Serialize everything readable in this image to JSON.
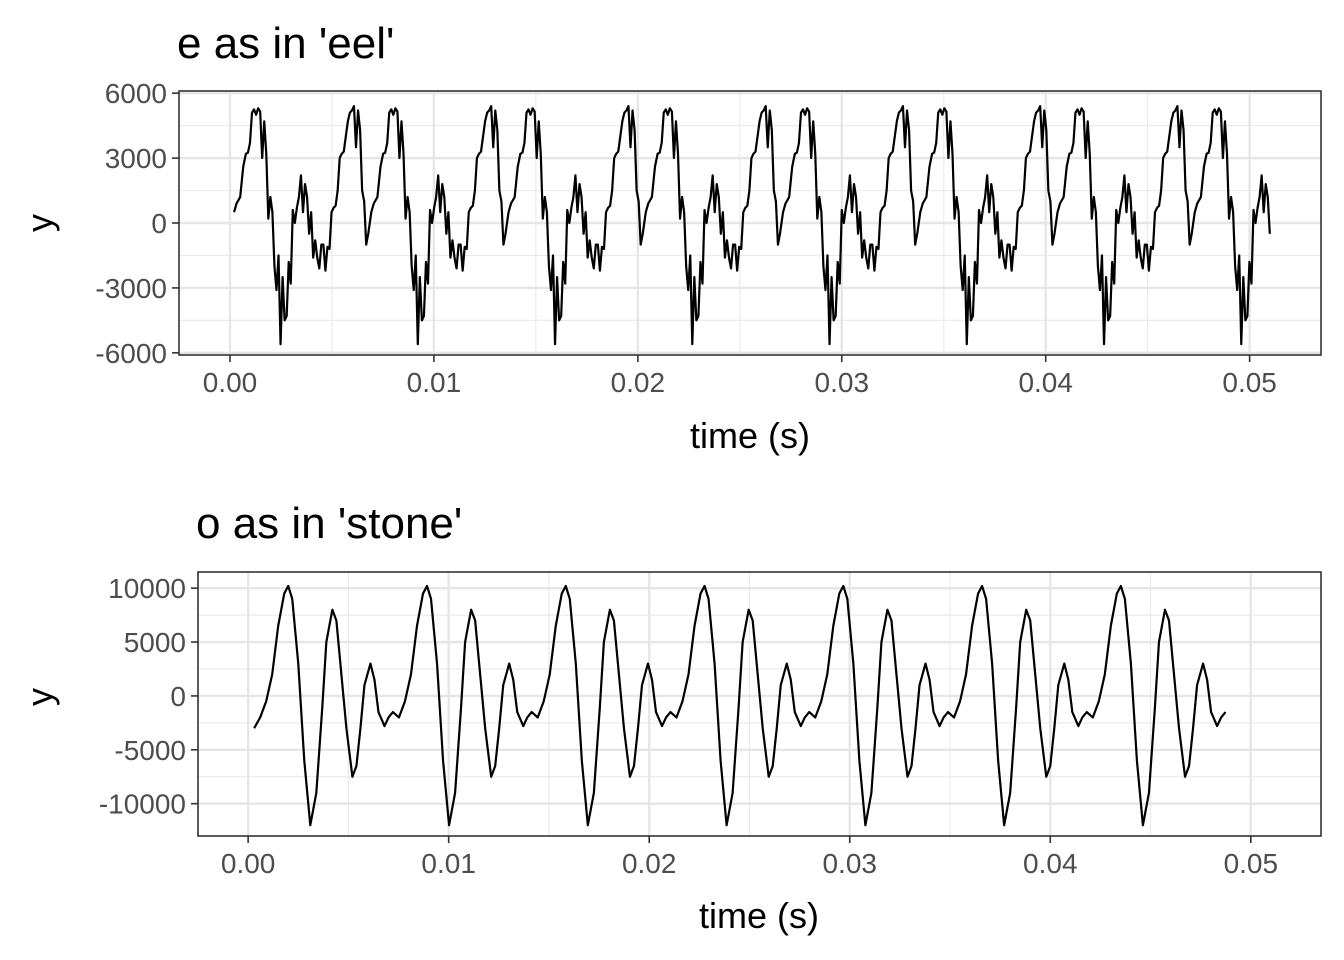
{
  "charts": [
    {
      "title": "e as in 'eel'",
      "xlabel": "time (s)",
      "ylabel": "y",
      "x_ticks": [
        "0.00",
        "0.01",
        "0.02",
        "0.03",
        "0.04",
        "0.05"
      ],
      "y_ticks": [
        "6000",
        "3000",
        "0",
        "-3000",
        "-6000"
      ]
    },
    {
      "title": "o as in 'stone'",
      "xlabel": "time (s)",
      "ylabel": "y",
      "x_ticks": [
        "0.00",
        "0.01",
        "0.02",
        "0.03",
        "0.04",
        "0.05"
      ],
      "y_ticks": [
        "10000",
        "5000",
        "0",
        "-5000",
        "-10000"
      ]
    }
  ],
  "chart_data": [
    {
      "type": "line",
      "title": "e as in 'eel'",
      "xlabel": "time (s)",
      "ylabel": "y",
      "xlim": [
        -0.0025,
        0.0535
      ],
      "ylim": [
        -6100,
        6100
      ],
      "x_ticks": [
        0,
        0.01,
        0.02,
        0.03,
        0.04,
        0.05
      ],
      "y_ticks": [
        6000,
        3000,
        0,
        -3000,
        -6000
      ],
      "grid": true,
      "line_color": "#000000",
      "period": 0.00673,
      "x_start": 0.0002,
      "x_end": 0.051,
      "cycle": [
        [
          0.0,
          500
        ],
        [
          0.00012,
          900
        ],
        [
          0.0003,
          1200
        ],
        [
          0.00045,
          2600
        ],
        [
          0.00058,
          3200
        ],
        [
          0.00068,
          3250
        ],
        [
          0.00078,
          3700
        ],
        [
          0.00088,
          5100
        ],
        [
          0.00098,
          5250
        ],
        [
          0.00108,
          5000
        ],
        [
          0.00118,
          5300
        ],
        [
          0.00128,
          5150
        ],
        [
          0.00138,
          3000
        ],
        [
          0.00148,
          4700
        ],
        [
          0.00158,
          3200
        ],
        [
          0.00168,
          200
        ],
        [
          0.00178,
          1200
        ],
        [
          0.00188,
          500
        ],
        [
          0.00198,
          -2000
        ],
        [
          0.00208,
          -3100
        ],
        [
          0.00218,
          -1500
        ],
        [
          0.00228,
          -5600
        ],
        [
          0.00238,
          -2500
        ],
        [
          0.00248,
          -4500
        ],
        [
          0.00258,
          -4300
        ],
        [
          0.00268,
          -1800
        ],
        [
          0.00278,
          -2800
        ],
        [
          0.00288,
          600
        ],
        [
          0.00298,
          0
        ],
        [
          0.00308,
          700
        ],
        [
          0.00318,
          1200
        ],
        [
          0.00328,
          2200
        ],
        [
          0.00338,
          500
        ],
        [
          0.00348,
          1800
        ],
        [
          0.00358,
          1200
        ],
        [
          0.00368,
          -500
        ],
        [
          0.00378,
          500
        ],
        [
          0.00388,
          -1600
        ],
        [
          0.00398,
          -800
        ],
        [
          0.00408,
          -1600
        ],
        [
          0.00418,
          -2100
        ],
        [
          0.00428,
          -1000
        ],
        [
          0.00438,
          -1000
        ],
        [
          0.00448,
          -2200
        ],
        [
          0.00458,
          -1100
        ],
        [
          0.00468,
          -1200
        ],
        [
          0.00478,
          500
        ],
        [
          0.00488,
          700
        ],
        [
          0.00498,
          800
        ],
        [
          0.00508,
          1500
        ],
        [
          0.00518,
          3000
        ],
        [
          0.00528,
          3200
        ],
        [
          0.00538,
          3300
        ],
        [
          0.00548,
          4000
        ],
        [
          0.00558,
          4700
        ],
        [
          0.00568,
          5100
        ],
        [
          0.00578,
          5200
        ],
        [
          0.00588,
          5400
        ],
        [
          0.00598,
          3500
        ],
        [
          0.00608,
          5200
        ],
        [
          0.00618,
          4300
        ],
        [
          0.00628,
          1500
        ],
        [
          0.00638,
          1000
        ],
        [
          0.00648,
          -1000
        ],
        [
          0.00658,
          -500
        ],
        [
          0.00673,
          500
        ]
      ]
    },
    {
      "type": "line",
      "title": "o as in 'stone'",
      "xlabel": "time (s)",
      "ylabel": "y",
      "xlim": [
        -0.0025,
        0.0535
      ],
      "ylim": [
        -13000,
        11500
      ],
      "x_ticks": [
        0,
        0.01,
        0.02,
        0.03,
        0.04,
        0.05
      ],
      "y_ticks": [
        10000,
        5000,
        0,
        -5000,
        -10000
      ],
      "grid": true,
      "line_color": "#000000",
      "period": 0.00692,
      "x_start": 0.0003,
      "x_end": 0.0489,
      "cycle": [
        [
          0.0,
          -3000
        ],
        [
          0.0003,
          -2000
        ],
        [
          0.0006,
          -500
        ],
        [
          0.0009,
          2000
        ],
        [
          0.0012,
          6500
        ],
        [
          0.0015,
          9500
        ],
        [
          0.0017,
          10200
        ],
        [
          0.0019,
          9000
        ],
        [
          0.0022,
          3000
        ],
        [
          0.0025,
          -6000
        ],
        [
          0.0028,
          -12000
        ],
        [
          0.0031,
          -9000
        ],
        [
          0.0034,
          -1000
        ],
        [
          0.0036,
          5000
        ],
        [
          0.0039,
          8000
        ],
        [
          0.0041,
          7000
        ],
        [
          0.0043,
          3000
        ],
        [
          0.0046,
          -3000
        ],
        [
          0.0049,
          -7500
        ],
        [
          0.0051,
          -6500
        ],
        [
          0.0053,
          -3000
        ],
        [
          0.0055,
          1000
        ],
        [
          0.0058,
          3000
        ],
        [
          0.006,
          1500
        ],
        [
          0.0062,
          -1500
        ],
        [
          0.0065,
          -2800
        ],
        [
          0.0067,
          -2000
        ],
        [
          0.00692,
          -1500
        ]
      ]
    }
  ]
}
